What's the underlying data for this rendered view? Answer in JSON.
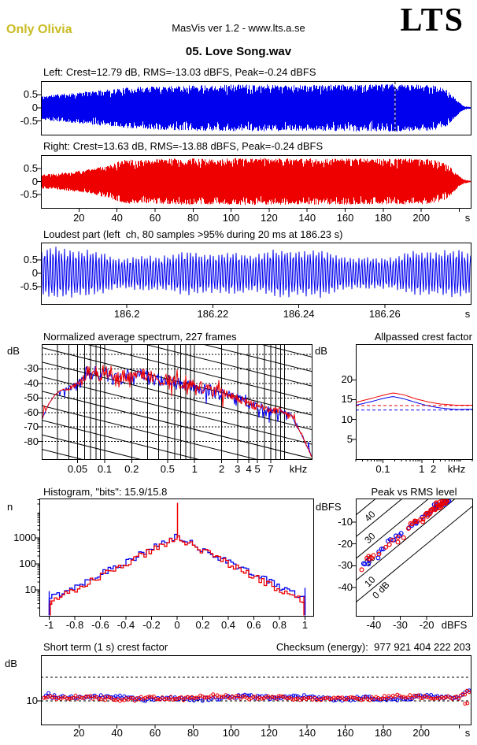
{
  "header": {
    "watermark": "Only Olivia",
    "app_version": "MasVis ver 1.2 - www.lts.a.se",
    "logo": "LTS",
    "title": "05. Love Song.wav"
  },
  "panels": {
    "left_wave": {
      "label": "Left: Crest=12.79 dB, RMS=-13.03 dBFS, Peak=-0.24 dBFS"
    },
    "right_wave": {
      "label": "Right: Crest=13.63 dB, RMS=-13.88 dBFS, Peak=-0.24 dBFS"
    },
    "loudest": {
      "title": "Loudest part (left  ch, 80 samples >95% during 20 ms at 186.23 s)"
    },
    "spectrum": {
      "title": "Normalized average spectrum, 227 frames",
      "ylabel": "dB"
    },
    "allpass": {
      "title": "Allpassed crest factor",
      "ylabel": "dB"
    },
    "histogram": {
      "title": "Histogram, \"bits\": 15.9/15.8",
      "ylabel": "n"
    },
    "peak_rms": {
      "title": "Peak vs RMS level",
      "ylabel": "dBFS"
    },
    "shortterm": {
      "title": "Short term (1 s) crest factor",
      "ylabel": "dB"
    },
    "checksum": {
      "label": "Checksum (energy):",
      "value": "977 921 404 222 203"
    }
  },
  "chart_data": [
    {
      "id": "wave-left",
      "type": "area",
      "channel": "left",
      "color": "#0000EE",
      "crest_db": 12.79,
      "rms_dbfs": -13.03,
      "peak_dbfs": -0.24,
      "ylim": [
        -1.03,
        1.03
      ],
      "yticks": [
        "0.5",
        "0",
        "-0.5"
      ],
      "x_range_s": [
        0,
        226
      ],
      "marker_s": 186.23,
      "envelope": [
        [
          0,
          0.45
        ],
        [
          0.02,
          0.5
        ],
        [
          0.05,
          0.55
        ],
        [
          0.1,
          0.62
        ],
        [
          0.15,
          0.7
        ],
        [
          0.2,
          0.78
        ],
        [
          0.28,
          0.85
        ],
        [
          0.35,
          0.88
        ],
        [
          0.45,
          0.9
        ],
        [
          0.55,
          0.9
        ],
        [
          0.62,
          0.87
        ],
        [
          0.7,
          0.9
        ],
        [
          0.78,
          0.9
        ],
        [
          0.82,
          0.92
        ],
        [
          0.86,
          0.9
        ],
        [
          0.9,
          0.88
        ],
        [
          0.92,
          0.86
        ],
        [
          0.945,
          0.7
        ],
        [
          0.96,
          0.45
        ],
        [
          0.975,
          0.2
        ],
        [
          0.985,
          0.08
        ],
        [
          1,
          0.03
        ]
      ]
    },
    {
      "id": "wave-right",
      "type": "area",
      "channel": "right",
      "color": "#EE0000",
      "crest_db": 13.63,
      "rms_dbfs": -13.88,
      "peak_dbfs": -0.24,
      "ylim": [
        -1.03,
        1.03
      ],
      "yticks": [
        "0.5",
        "0",
        "-0.5"
      ],
      "x_range_s": [
        0,
        226
      ],
      "xticks": [
        "20",
        "40",
        "60",
        "80",
        "100",
        "120",
        "140",
        "160",
        "180",
        "200"
      ],
      "x_unit": "s",
      "envelope": [
        [
          0,
          0.28
        ],
        [
          0.04,
          0.33
        ],
        [
          0.08,
          0.4
        ],
        [
          0.12,
          0.5
        ],
        [
          0.16,
          0.68
        ],
        [
          0.2,
          0.88
        ],
        [
          0.24,
          0.85
        ],
        [
          0.3,
          0.9
        ],
        [
          0.4,
          0.9
        ],
        [
          0.5,
          0.92
        ],
        [
          0.6,
          0.9
        ],
        [
          0.7,
          0.9
        ],
        [
          0.8,
          0.9
        ],
        [
          0.86,
          0.9
        ],
        [
          0.9,
          0.88
        ],
        [
          0.92,
          0.86
        ],
        [
          0.945,
          0.7
        ],
        [
          0.96,
          0.45
        ],
        [
          0.975,
          0.2
        ],
        [
          0.985,
          0.08
        ],
        [
          1,
          0.03
        ]
      ]
    },
    {
      "id": "loudest",
      "type": "wave",
      "channel": "left",
      "color": "#0000EE",
      "samples": 80,
      "threshold": ">95%",
      "window_ms": 20,
      "at_s": 186.23,
      "ylim": [
        -1.15,
        1.15
      ],
      "yticks": [
        "0.5",
        "0",
        "-0.5"
      ],
      "xlim_s": [
        186.18,
        186.28
      ],
      "xticks": [
        "186.2",
        "186.22",
        "186.24",
        "186.26"
      ],
      "x_unit": "s"
    },
    {
      "id": "spectrum",
      "type": "line",
      "frames": 227,
      "ylim": [
        -13,
        -92
      ],
      "yticks": [
        "-30",
        "-40",
        "-50",
        "-60",
        "-70",
        "-80"
      ],
      "xlim_khz": [
        0.02,
        20
      ],
      "xticks": [
        "0.05",
        "0.1",
        "0.2",
        "0.5",
        "1",
        "2",
        "3",
        "4",
        "5",
        "7"
      ],
      "x_unit": "kHz",
      "series_colors": {
        "left": "#0000EE",
        "right": "#EE0000"
      },
      "base_curve_khz_db": [
        [
          0.02,
          -65
        ],
        [
          0.024,
          -54
        ],
        [
          0.028,
          -48
        ],
        [
          0.032,
          -45
        ],
        [
          0.036,
          -44
        ],
        [
          0.04,
          -43.5
        ],
        [
          0.05,
          -42
        ],
        [
          0.055,
          -40
        ],
        [
          0.06,
          -35
        ],
        [
          0.065,
          -30
        ],
        [
          0.07,
          -36
        ],
        [
          0.08,
          -31
        ],
        [
          0.09,
          -36
        ],
        [
          0.1,
          -31
        ],
        [
          0.11,
          -35
        ],
        [
          0.13,
          -37
        ],
        [
          0.16,
          -35
        ],
        [
          0.2,
          -36
        ],
        [
          0.25,
          -34
        ],
        [
          0.3,
          -35
        ],
        [
          0.4,
          -37
        ],
        [
          0.5,
          -38
        ],
        [
          0.65,
          -40
        ],
        [
          0.8,
          -41
        ],
        [
          1,
          -42
        ],
        [
          1.3,
          -44
        ],
        [
          1.7,
          -45
        ],
        [
          2,
          -46
        ],
        [
          2.5,
          -48
        ],
        [
          3,
          -50
        ],
        [
          4,
          -54
        ],
        [
          5,
          -56
        ],
        [
          6,
          -57.5
        ],
        [
          7,
          -58.5
        ],
        [
          8,
          -59
        ],
        [
          9,
          -59.5
        ],
        [
          10,
          -60
        ],
        [
          11,
          -61
        ],
        [
          12,
          -63
        ],
        [
          13,
          -66
        ],
        [
          14,
          -70
        ],
        [
          16,
          -77
        ],
        [
          18,
          -84
        ],
        [
          20,
          -90
        ]
      ]
    },
    {
      "id": "allpass",
      "type": "line",
      "ylim": [
        0,
        29
      ],
      "yticks": [
        "20",
        "15",
        "10",
        "5"
      ],
      "xlim_khz": [
        0.02,
        20
      ],
      "xticks": [
        "0.1",
        "1",
        "2"
      ],
      "x_unit": "kHz",
      "series": [
        {
          "name": "left",
          "color": "#0000EE",
          "dashed_level_db": 12.4,
          "points_khz_db": [
            [
              0.02,
              13.6
            ],
            [
              0.05,
              14.5
            ],
            [
              0.1,
              15.3
            ],
            [
              0.18,
              15.8
            ],
            [
              0.35,
              15.2
            ],
            [
              0.7,
              14.3
            ],
            [
              1.5,
              13.4
            ],
            [
              3,
              12.9
            ],
            [
              8,
              12.5
            ],
            [
              20,
              12.6
            ]
          ]
        },
        {
          "name": "right",
          "color": "#EE0000",
          "dashed_level_db": 13.5,
          "points_khz_db": [
            [
              0.02,
              14.3
            ],
            [
              0.05,
              15.3
            ],
            [
              0.1,
              16.1
            ],
            [
              0.18,
              16.7
            ],
            [
              0.35,
              16.2
            ],
            [
              0.7,
              15.2
            ],
            [
              1.5,
              14.4
            ],
            [
              3,
              13.9
            ],
            [
              8,
              13.6
            ],
            [
              20,
              13.6
            ]
          ]
        }
      ]
    },
    {
      "id": "histogram",
      "type": "line",
      "bits": "15.9/15.8",
      "y_scale": "log",
      "yticks": [
        "1000",
        "100",
        "10"
      ],
      "xticks": [
        "-1",
        "-0.8",
        "-0.6",
        "-0.4",
        "-0.2",
        "0",
        "0.2",
        "0.4",
        "0.6",
        "0.8",
        "1"
      ],
      "center_count": 1000,
      "edge_count": 5,
      "center_spike_channel": "right",
      "series_colors": {
        "left": "#0000EE",
        "right": "#EE0000"
      }
    },
    {
      "id": "peak-rms",
      "type": "scatter",
      "ylim": [
        0.8,
        -53
      ],
      "yticks": [
        "-10",
        "-20",
        "-30",
        "-40"
      ],
      "xlim": [
        -46.8,
        -2.8
      ],
      "xticks": [
        "-40",
        "-30",
        "-20"
      ],
      "x_unit": "dBFS",
      "diagonal_labels": [
        "40",
        "30",
        "20",
        "10",
        "0 dB"
      ],
      "diagonal_values_db": [
        40,
        30,
        20,
        10,
        0
      ],
      "cluster": {
        "rms_range_dbfs": [
          -45,
          -11
        ],
        "crest_range_db": [
          11,
          18
        ],
        "peak_max_dbfs": -0.5
      },
      "series_colors": {
        "left": "#0000EE",
        "right": "#EE0000"
      }
    },
    {
      "id": "shortterm",
      "type": "scatter",
      "ylim": [
        0,
        29.5
      ],
      "yticks": [
        "10"
      ],
      "dashed_levels_db": [
        10,
        20
      ],
      "x_range_s": [
        0,
        226
      ],
      "xticks": [
        "20",
        "40",
        "60",
        "80",
        "100",
        "120",
        "140",
        "160",
        "180",
        "200"
      ],
      "x_unit": "s",
      "typical_crest_db": 11.3,
      "end_rise_to_db": 15,
      "low_outliers_db": [
        8.8,
        8.9
      ],
      "series_colors": {
        "left": "#0000EE",
        "right": "#EE0000"
      }
    }
  ]
}
